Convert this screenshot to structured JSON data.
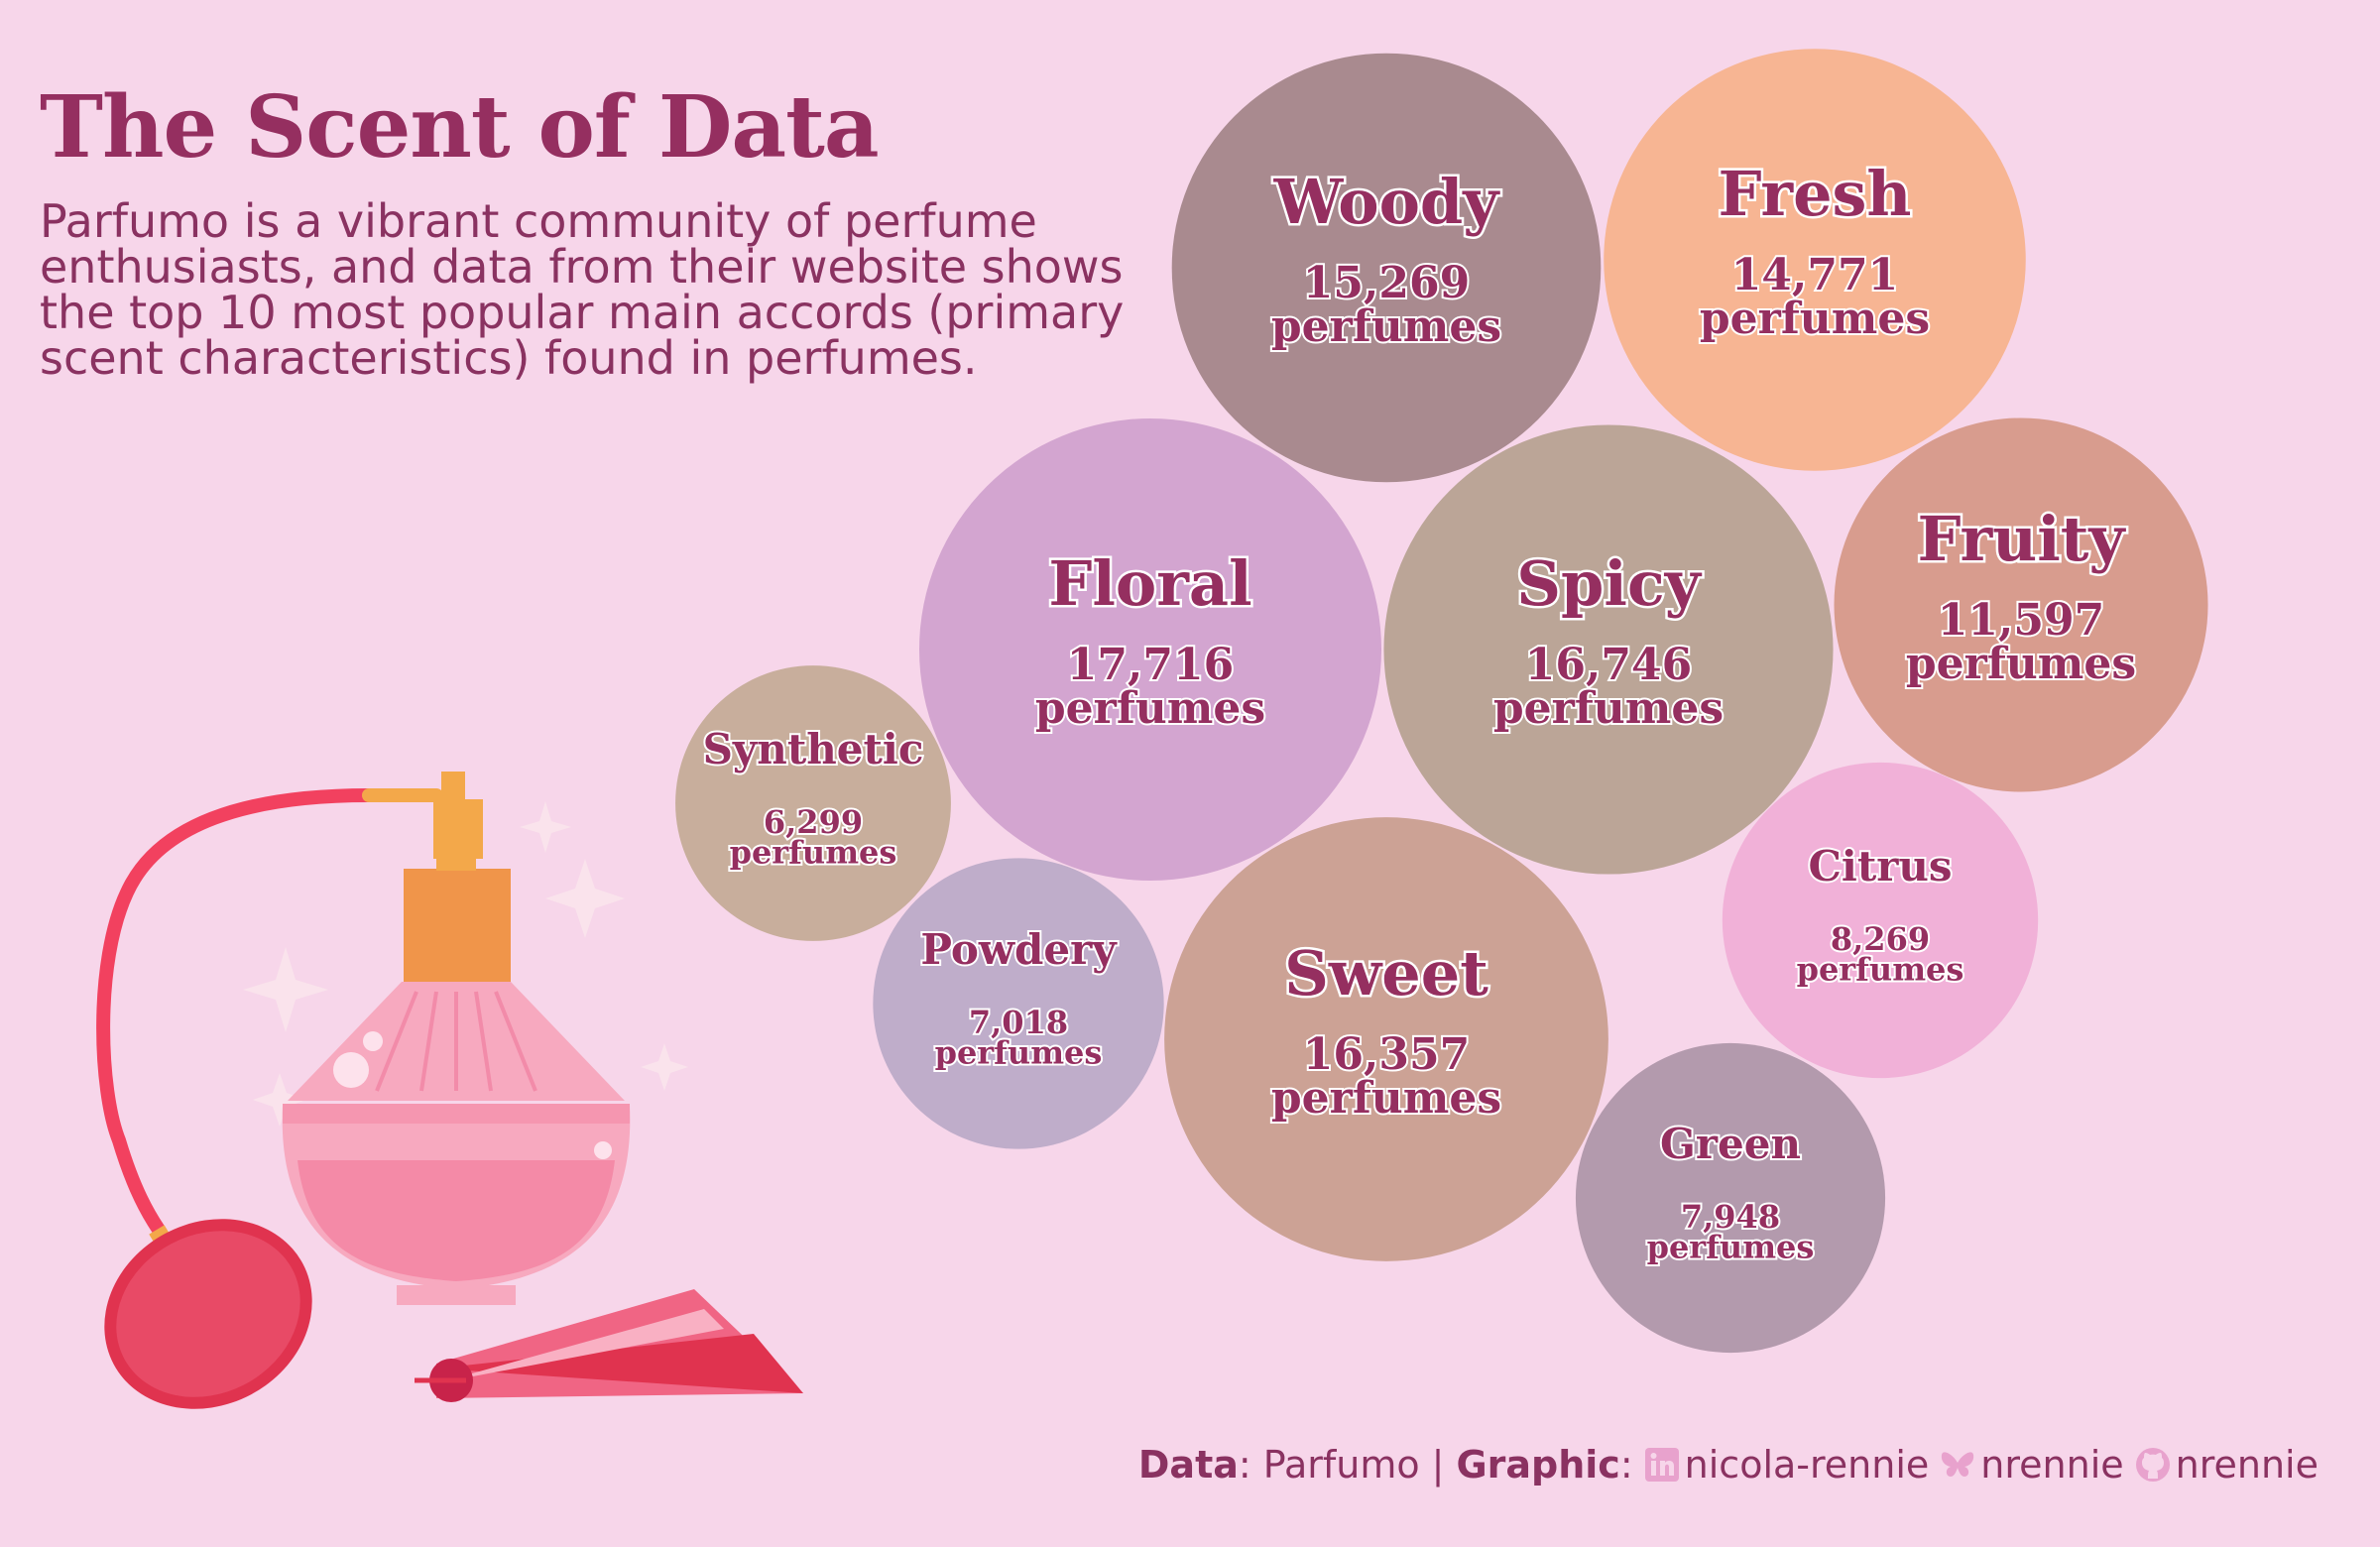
{
  "title": "The Scent of Data",
  "subtitle": "Parfumo is a vibrant community of perfume enthusiasts, and data from their website shows the top 10 most popular main accords (primary scent characteristics) found in perfumes.",
  "caption": {
    "data_label": "Data",
    "data_value": "Parfumo",
    "separator": "|",
    "graphic_label": "Graphic",
    "linkedin_icon": "linkedin-icon",
    "linkedin_handle": "nicola-rennie",
    "bluesky_icon": "butterfly-icon",
    "bluesky_handle": "nrennie",
    "github_icon": "github-icon",
    "github_handle": "nrennie"
  },
  "colors": {
    "background": "#f7d6ea",
    "text": "#952f60",
    "bubble_label": "#952f60",
    "label_outline": "#ffffff"
  },
  "chart_data": {
    "type": "bubble",
    "unit_label": "perfumes",
    "categories": [
      "Floral",
      "Spicy",
      "Sweet",
      "Woody",
      "Fresh",
      "Fruity",
      "Citrus",
      "Green",
      "Powdery",
      "Synthetic"
    ],
    "values": [
      17716,
      16746,
      16357,
      15269,
      14771,
      11597,
      8269,
      7948,
      7018,
      6299
    ],
    "value_labels": [
      "17,716",
      "16,746",
      "16,357",
      "15,269",
      "14,771",
      "11,597",
      "8,269",
      "7,948",
      "7,018",
      "6,299"
    ],
    "bubble_colors": [
      "#d3a5d0",
      "#bba597",
      "#cca295",
      "#a98a8f",
      "#f7b593",
      "#d89c8e",
      "#f1b1d8",
      "#b39aad",
      "#bfadca",
      "#c8ae9c"
    ]
  }
}
